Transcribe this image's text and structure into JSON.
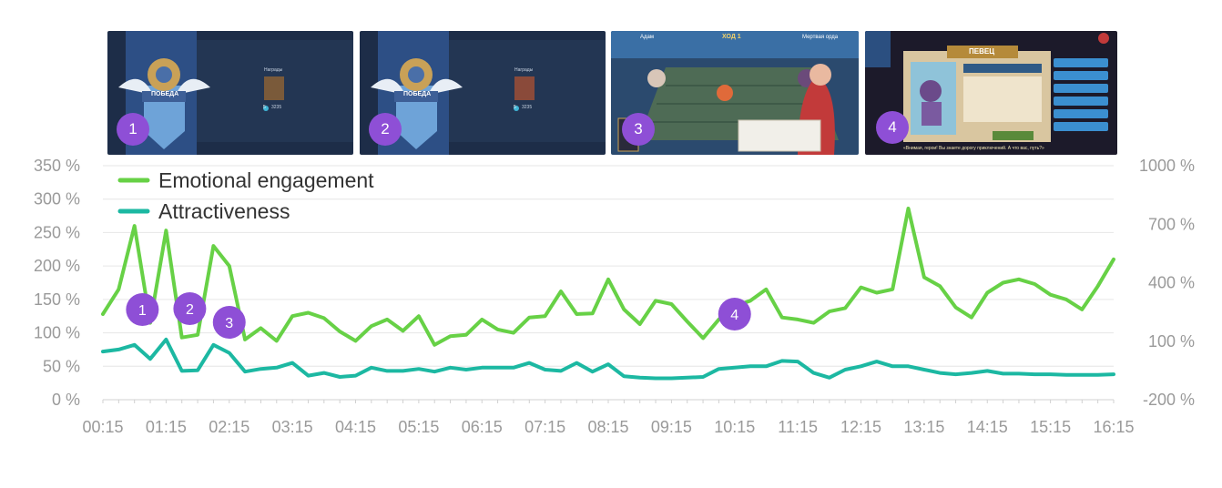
{
  "screenshots": [
    {
      "number": "1",
      "banner_text": "ПОБЕДА",
      "panel_text": "Награды",
      "badge": "5",
      "amount": "3235"
    },
    {
      "number": "2",
      "banner_text": "ПОБЕДА",
      "panel_text": "Награды",
      "badge": "5",
      "amount": "3235"
    },
    {
      "number": "3",
      "top_left_text": "Адам",
      "top_center_text": "ХОД 1",
      "top_right_text": "Мертвая орда"
    },
    {
      "number": "4",
      "title_text": "ПЕВЕЦ",
      "bottom_text": "«Внимая, герои! Вы знаете дорогу приключений. А что вас, путь?»"
    }
  ],
  "colors": {
    "emotional": "#67d146",
    "attractiveness": "#1cb8a2",
    "marker": "#8e4fd6",
    "grid": "#e6e6e6",
    "tick": "#9a9a9a"
  },
  "chart_data": {
    "type": "line",
    "x_tick_labels": [
      "00:15",
      "01:15",
      "02:15",
      "03:15",
      "04:15",
      "05:15",
      "06:15",
      "07:15",
      "08:15",
      "09:15",
      "10:15",
      "11:15",
      "12:15",
      "13:15",
      "14:15",
      "15:15",
      "16:15"
    ],
    "y_left_ticks": [
      "350 %",
      "300 %",
      "250 %",
      "200 %",
      "150 %",
      "100 %",
      "50 %",
      "0 %"
    ],
    "y_left_range": [
      0,
      350
    ],
    "y_right_ticks": [
      "1000 %",
      "700 %",
      "400 %",
      "100 %",
      "-200 %"
    ],
    "y_right_range": [
      -200,
      1000
    ],
    "grid": true,
    "legend_position": "top-left",
    "series": [
      {
        "name": "Emotional engagement",
        "axis": "left",
        "color": "#67d146",
        "values": [
          128,
          165,
          260,
          115,
          253,
          93,
          97,
          230,
          200,
          90,
          107,
          88,
          125,
          130,
          122,
          102,
          88,
          110,
          120,
          103,
          125,
          82,
          95,
          97,
          120,
          105,
          100,
          123,
          125,
          162,
          128,
          129,
          180,
          135,
          113,
          148,
          143,
          117,
          92,
          120,
          140,
          148,
          165,
          123,
          120,
          115,
          132,
          137,
          168,
          160,
          165,
          286,
          183,
          170,
          138,
          123,
          160,
          175,
          180,
          173,
          157,
          150,
          135,
          170,
          210
        ]
      },
      {
        "name": "Attractiveness",
        "axis": "left",
        "color": "#1cb8a2",
        "values": [
          72,
          75,
          82,
          61,
          90,
          43,
          44,
          82,
          70,
          42,
          46,
          48,
          55,
          36,
          40,
          34,
          36,
          48,
          43,
          43,
          46,
          42,
          48,
          45,
          48,
          48,
          48,
          55,
          45,
          43,
          55,
          42,
          53,
          35,
          33,
          32,
          32,
          33,
          34,
          46,
          48,
          50,
          50,
          58,
          57,
          40,
          33,
          45,
          50,
          57,
          50,
          50,
          45,
          40,
          38,
          40,
          43,
          39,
          39,
          38,
          38,
          37,
          37,
          37,
          38
        ]
      }
    ],
    "annotations": [
      {
        "label": "1",
        "x_index": 2.5
      },
      {
        "label": "2",
        "x_index": 5.5
      },
      {
        "label": "3",
        "x_index": 8
      },
      {
        "label": "4",
        "x_index": 40
      }
    ]
  }
}
